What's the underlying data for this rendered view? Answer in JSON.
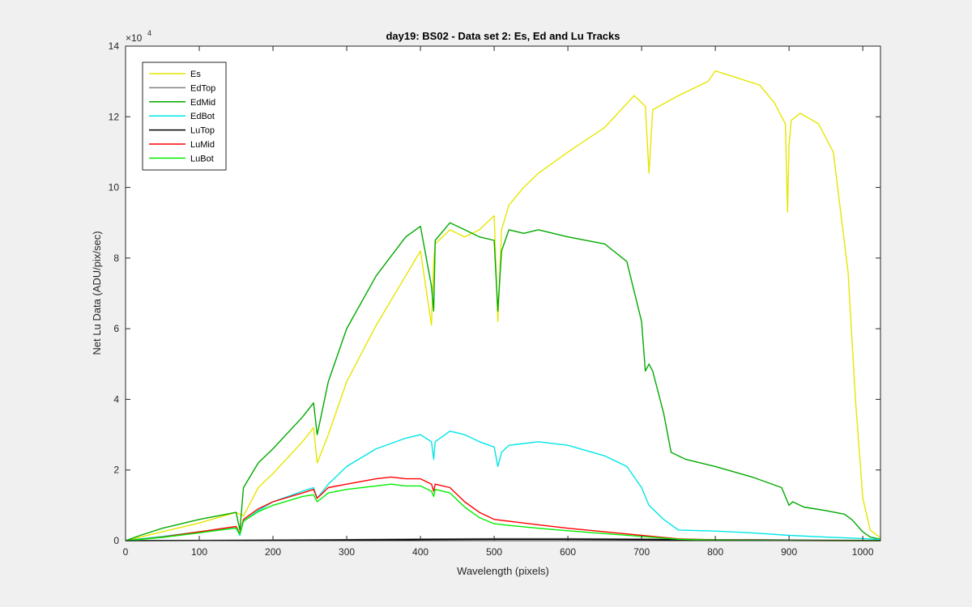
{
  "chart_data": {
    "type": "line",
    "title": "day19: BS02 - Data set 2: Es, Ed and Lu Tracks",
    "xlabel": "Wavelength (pixels)",
    "ylabel": "Net Lu Data (ADU/pix/sec)",
    "y_exponent_base": "×10",
    "y_exponent_power": "4",
    "xlim": [
      0,
      1024
    ],
    "ylim": [
      0,
      140000
    ],
    "x_ticks": [
      0,
      100,
      200,
      300,
      400,
      500,
      600,
      700,
      800,
      900,
      1000
    ],
    "y_ticks": [
      0,
      20000,
      40000,
      60000,
      80000,
      100000,
      120000,
      140000
    ],
    "x_tick_labels": [
      "0",
      "100",
      "200",
      "300",
      "400",
      "500",
      "600",
      "700",
      "800",
      "900",
      "1000"
    ],
    "y_tick_labels": [
      "0",
      "2",
      "4",
      "6",
      "8",
      "10",
      "12",
      "14"
    ],
    "grid": false,
    "legend_position": "top-left",
    "series": [
      {
        "name": "Es",
        "color": "#e6e600",
        "x": [
          0,
          20,
          50,
          100,
          150,
          160,
          180,
          200,
          240,
          255,
          260,
          275,
          300,
          340,
          380,
          400,
          415,
          418,
          420,
          440,
          460,
          480,
          500,
          505,
          510,
          520,
          540,
          560,
          600,
          650,
          690,
          705,
          710,
          715,
          750,
          790,
          800,
          830,
          860,
          880,
          895,
          898,
          900,
          903,
          915,
          940,
          960,
          980,
          990,
          1000,
          1010,
          1024
        ],
        "y": [
          0,
          1000,
          2500,
          5000,
          8000,
          7000,
          15000,
          19000,
          28000,
          32000,
          22000,
          30000,
          45000,
          61000,
          75000,
          82000,
          61000,
          79000,
          84000,
          88000,
          86000,
          88000,
          92000,
          62000,
          88000,
          95000,
          100000,
          104000,
          110000,
          117000,
          126000,
          123000,
          104000,
          122000,
          126000,
          130000,
          133000,
          131000,
          129000,
          124000,
          118000,
          93000,
          112000,
          119000,
          121000,
          118000,
          110000,
          76000,
          40000,
          12000,
          3000,
          800
        ]
      },
      {
        "name": "EdTop",
        "color": "#808080",
        "x": [
          0,
          100,
          200,
          300,
          400,
          500,
          600,
          700,
          800,
          900,
          1000,
          1024
        ],
        "y": [
          0,
          100,
          200,
          300,
          500,
          600,
          600,
          500,
          300,
          200,
          100,
          0
        ]
      },
      {
        "name": "EdMid",
        "color": "#00aa00",
        "x": [
          0,
          20,
          50,
          100,
          150,
          155,
          160,
          180,
          200,
          240,
          255,
          260,
          275,
          300,
          340,
          380,
          400,
          415,
          418,
          420,
          440,
          460,
          480,
          500,
          505,
          510,
          520,
          540,
          560,
          600,
          650,
          680,
          700,
          705,
          710,
          715,
          730,
          740,
          760,
          800,
          850,
          890,
          900,
          905,
          920,
          950,
          975,
          985,
          1000,
          1010,
          1024
        ],
        "y": [
          0,
          1500,
          3500,
          6000,
          8000,
          3000,
          15000,
          22000,
          26000,
          35000,
          39000,
          30000,
          45000,
          60000,
          75000,
          86000,
          89000,
          72000,
          65000,
          85000,
          90000,
          88000,
          86000,
          85000,
          65000,
          82000,
          88000,
          87000,
          88000,
          86000,
          84000,
          79000,
          62000,
          48000,
          50000,
          48000,
          36000,
          25000,
          23000,
          21000,
          18000,
          15000,
          10000,
          11000,
          9500,
          8500,
          7500,
          6000,
          2500,
          1000,
          400
        ]
      },
      {
        "name": "EdBot",
        "color": "#00e6e6",
        "x": [
          0,
          20,
          50,
          100,
          150,
          155,
          160,
          180,
          200,
          240,
          255,
          260,
          275,
          300,
          340,
          380,
          400,
          415,
          418,
          420,
          440,
          460,
          480,
          500,
          505,
          510,
          520,
          560,
          600,
          650,
          680,
          700,
          710,
          730,
          750,
          800,
          850,
          900,
          950,
          1000,
          1024
        ],
        "y": [
          0,
          500,
          1200,
          2500,
          3500,
          1500,
          5500,
          8500,
          11000,
          14000,
          15000,
          12000,
          16000,
          21000,
          26000,
          29000,
          30000,
          28000,
          23000,
          28000,
          31000,
          30000,
          28000,
          26500,
          21000,
          25000,
          27000,
          28000,
          27000,
          24000,
          21000,
          15000,
          10000,
          6000,
          3000,
          2700,
          2200,
          1500,
          1000,
          600,
          300
        ]
      },
      {
        "name": "LuTop",
        "color": "#000000",
        "x": [
          0,
          100,
          200,
          300,
          400,
          500,
          600,
          700,
          800,
          900,
          1000,
          1024
        ],
        "y": [
          0,
          50,
          100,
          200,
          300,
          400,
          400,
          300,
          200,
          100,
          50,
          0
        ]
      },
      {
        "name": "LuMid",
        "color": "#ff0000",
        "x": [
          0,
          20,
          50,
          100,
          150,
          155,
          160,
          180,
          200,
          240,
          255,
          260,
          275,
          300,
          340,
          360,
          380,
          400,
          415,
          418,
          420,
          440,
          460,
          480,
          500,
          520,
          560,
          600,
          650,
          700,
          750,
          800,
          850,
          900,
          1000,
          1024
        ],
        "y": [
          0,
          400,
          1000,
          2500,
          4000,
          2000,
          6000,
          9000,
          11000,
          13500,
          14500,
          12000,
          15000,
          16000,
          17500,
          18000,
          17500,
          17500,
          16000,
          14000,
          16000,
          15000,
          11000,
          8000,
          6000,
          5500,
          4500,
          3500,
          2500,
          1500,
          500,
          200,
          100,
          50,
          0,
          0
        ]
      },
      {
        "name": "LuBot",
        "color": "#00ee00",
        "x": [
          0,
          20,
          50,
          100,
          150,
          155,
          160,
          180,
          200,
          240,
          255,
          260,
          275,
          300,
          340,
          360,
          380,
          400,
          415,
          418,
          420,
          440,
          460,
          480,
          500,
          520,
          560,
          600,
          650,
          700,
          750,
          800,
          850,
          900,
          1000,
          1024
        ],
        "y": [
          0,
          350,
          900,
          2200,
          3600,
          1800,
          5500,
          8200,
          10000,
          12500,
          13000,
          11000,
          13500,
          14500,
          15500,
          16000,
          15500,
          15500,
          14000,
          12500,
          14500,
          13500,
          9500,
          6500,
          4800,
          4300,
          3500,
          2800,
          2000,
          1200,
          400,
          150,
          80,
          40,
          0,
          0
        ]
      }
    ]
  }
}
